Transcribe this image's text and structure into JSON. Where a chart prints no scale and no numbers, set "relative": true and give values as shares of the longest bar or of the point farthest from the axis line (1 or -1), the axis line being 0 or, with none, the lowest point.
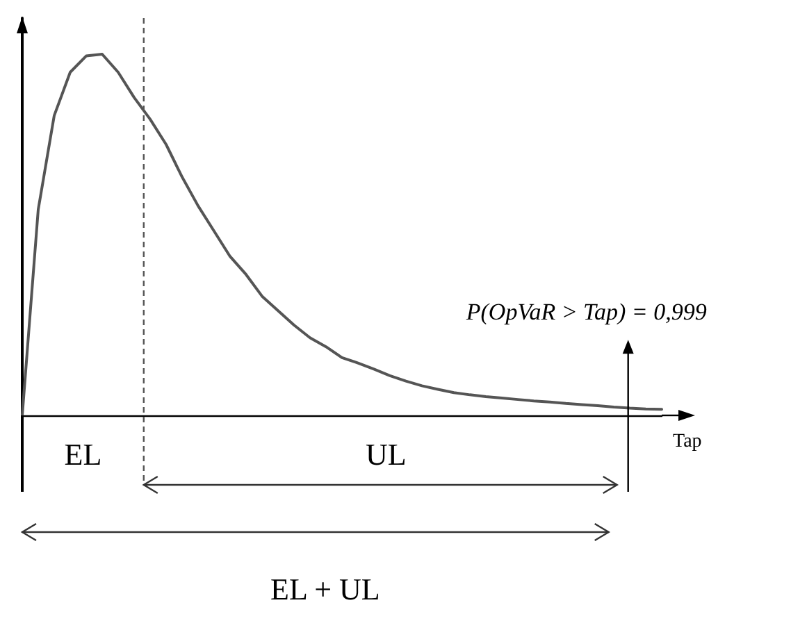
{
  "chart_data": {
    "type": "line",
    "relative": true,
    "xlabel": "Tap",
    "grid": false,
    "marker": "none",
    "line_style": "solid",
    "categories": [
      null,
      null,
      null,
      null,
      null,
      null,
      null,
      null,
      null,
      null,
      null,
      null,
      null,
      null,
      null,
      null,
      null,
      null,
      null,
      null,
      null,
      null,
      null,
      null,
      null,
      null,
      null,
      null,
      null,
      null,
      null,
      null,
      null,
      null,
      null,
      null,
      null,
      null,
      null,
      null,
      null
    ],
    "series": [
      {
        "color": "#555555",
        "values": [
          0,
          0.57,
          0.83,
          0.95,
          0.995,
          1,
          0.95,
          0.88,
          0.82,
          0.75,
          0.66,
          0.58,
          0.51,
          0.44,
          0.39,
          0.33,
          0.29,
          0.25,
          0.215,
          0.19,
          0.16,
          0.145,
          0.128,
          0.11,
          0.095,
          0.082,
          0.072,
          0.063,
          0.057,
          0.052,
          0.048,
          0.044,
          0.04,
          0.037,
          0.033,
          0.03,
          0.027,
          0.023,
          0.02,
          0.018,
          0.017
        ]
      }
    ],
    "annotations": [
      "EL",
      "UL",
      "EL + UL",
      "P(OpVaR > Tap) = 0,999"
    ]
  }
}
